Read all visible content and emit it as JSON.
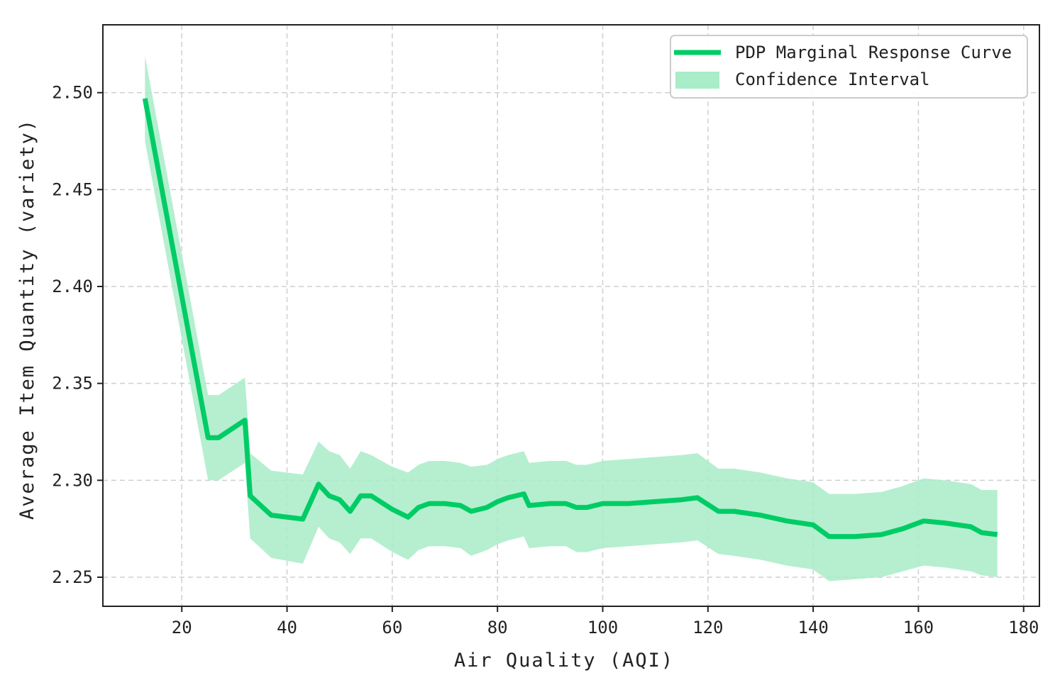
{
  "chart_data": {
    "type": "line",
    "xlabel": "Air Quality (AQI)",
    "ylabel": "Average Item Quantity (variety)",
    "xlim": [
      5,
      183
    ],
    "ylim": [
      2.235,
      2.535
    ],
    "xticks": [
      20,
      40,
      60,
      80,
      100,
      120,
      140,
      160,
      180
    ],
    "yticks": [
      2.25,
      2.3,
      2.35,
      2.4,
      2.45,
      2.5
    ],
    "xtick_labels": [
      "20",
      "40",
      "60",
      "80",
      "100",
      "120",
      "140",
      "160",
      "180"
    ],
    "ytick_labels": [
      "2.25",
      "2.30",
      "2.35",
      "2.40",
      "2.45",
      "2.50"
    ],
    "grid": true,
    "legend_position": "top-right",
    "colors": {
      "line": "#00cc66",
      "band": "#a8ecc8"
    },
    "series": [
      {
        "name": "PDP Marginal Response Curve",
        "kind": "line",
        "x": [
          13,
          25,
          27,
          32,
          33,
          37,
          43,
          46,
          48,
          50,
          52,
          54,
          56,
          60,
          63,
          65,
          67,
          70,
          73,
          75,
          78,
          80,
          82,
          85,
          86,
          90,
          93,
          95,
          97,
          100,
          105,
          110,
          115,
          118,
          122,
          125,
          130,
          135,
          140,
          143,
          148,
          153,
          157,
          161,
          165,
          170,
          172,
          175
        ],
        "y": [
          2.497,
          2.322,
          2.322,
          2.331,
          2.292,
          2.282,
          2.28,
          2.298,
          2.292,
          2.29,
          2.284,
          2.292,
          2.292,
          2.285,
          2.281,
          2.286,
          2.288,
          2.288,
          2.287,
          2.284,
          2.286,
          2.289,
          2.291,
          2.293,
          2.287,
          2.288,
          2.288,
          2.286,
          2.286,
          2.288,
          2.288,
          2.289,
          2.29,
          2.291,
          2.284,
          2.284,
          2.282,
          2.279,
          2.277,
          2.271,
          2.271,
          2.272,
          2.275,
          2.279,
          2.278,
          2.276,
          2.273,
          2.272
        ]
      },
      {
        "name": "Confidence Interval",
        "kind": "band",
        "x": [
          13,
          25,
          27,
          32,
          33,
          37,
          43,
          46,
          48,
          50,
          52,
          54,
          56,
          60,
          63,
          65,
          67,
          70,
          73,
          75,
          78,
          80,
          82,
          85,
          86,
          90,
          93,
          95,
          97,
          100,
          105,
          110,
          115,
          118,
          122,
          125,
          130,
          135,
          140,
          143,
          148,
          153,
          157,
          161,
          165,
          170,
          172,
          175
        ],
        "upper": [
          2.519,
          2.344,
          2.344,
          2.353,
          2.314,
          2.305,
          2.303,
          2.32,
          2.315,
          2.313,
          2.306,
          2.315,
          2.313,
          2.307,
          2.304,
          2.308,
          2.31,
          2.31,
          2.309,
          2.307,
          2.308,
          2.311,
          2.313,
          2.315,
          2.309,
          2.31,
          2.31,
          2.308,
          2.308,
          2.31,
          2.311,
          2.312,
          2.313,
          2.314,
          2.306,
          2.306,
          2.304,
          2.301,
          2.299,
          2.293,
          2.293,
          2.294,
          2.297,
          2.301,
          2.3,
          2.298,
          2.295,
          2.295
        ],
        "lower": [
          2.475,
          2.3,
          2.3,
          2.309,
          2.27,
          2.26,
          2.257,
          2.276,
          2.27,
          2.268,
          2.262,
          2.27,
          2.27,
          2.263,
          2.259,
          2.264,
          2.266,
          2.266,
          2.265,
          2.261,
          2.264,
          2.267,
          2.269,
          2.271,
          2.265,
          2.266,
          2.266,
          2.263,
          2.263,
          2.265,
          2.266,
          2.267,
          2.268,
          2.269,
          2.262,
          2.261,
          2.259,
          2.256,
          2.254,
          2.248,
          2.249,
          2.25,
          2.253,
          2.256,
          2.255,
          2.253,
          2.251,
          2.25
        ]
      }
    ]
  }
}
